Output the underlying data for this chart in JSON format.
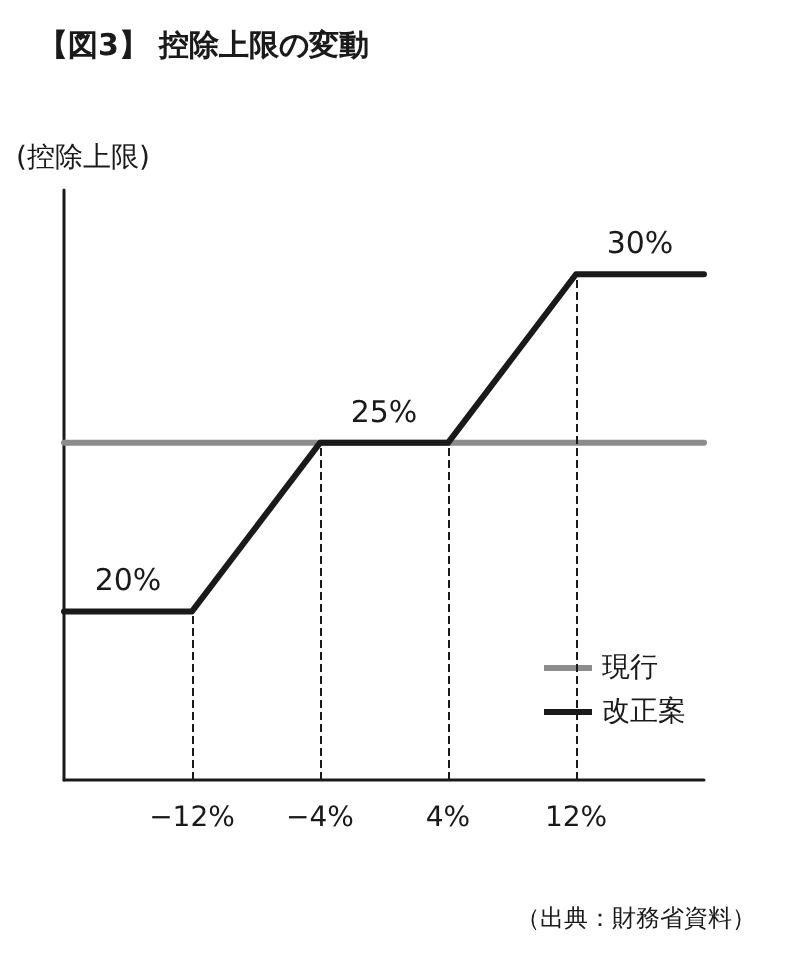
{
  "chart_data": {
    "type": "line",
    "title": "【図3】 控除上限の変動",
    "ylabel": "(控除上限)",
    "xlim": [
      -20,
      20
    ],
    "ylim": [
      15,
      32.5
    ],
    "xticks": [
      {
        "value": -12,
        "label": "−12%"
      },
      {
        "value": -4,
        "label": "−4%"
      },
      {
        "value": 4,
        "label": "4%"
      },
      {
        "value": 12,
        "label": "12%"
      }
    ],
    "series": [
      {
        "name": "現行",
        "color": "#8c8c8c",
        "x": [
          -20,
          0,
          20
        ],
        "values": [
          25,
          25,
          25
        ],
        "value_labels": [
          null,
          "25%",
          null
        ]
      },
      {
        "name": "改正案",
        "color": "#1a1a1a",
        "x": [
          -20,
          -16,
          -12,
          -4,
          0,
          4,
          12,
          16,
          20
        ],
        "values": [
          20,
          20,
          20,
          25,
          25,
          25,
          30,
          30,
          30
        ],
        "value_labels": [
          null,
          "20%",
          null,
          null,
          null,
          null,
          null,
          "30%",
          null
        ]
      }
    ],
    "ref_lines": [
      {
        "axis": "x",
        "value": -12,
        "color": "#1a1a1a",
        "line_style": "dashed"
      },
      {
        "axis": "x",
        "value": -4,
        "color": "#1a1a1a",
        "line_style": "dashed"
      },
      {
        "axis": "x",
        "value": 4,
        "color": "#1a1a1a",
        "line_style": "dashed"
      },
      {
        "axis": "x",
        "value": 12,
        "color": "#1a1a1a",
        "line_style": "dashed"
      }
    ],
    "annotations": [
      "（出典：財務省資料）"
    ],
    "grid": false,
    "legend": "bottom right",
    "marker": "none",
    "line_style": "solid"
  }
}
